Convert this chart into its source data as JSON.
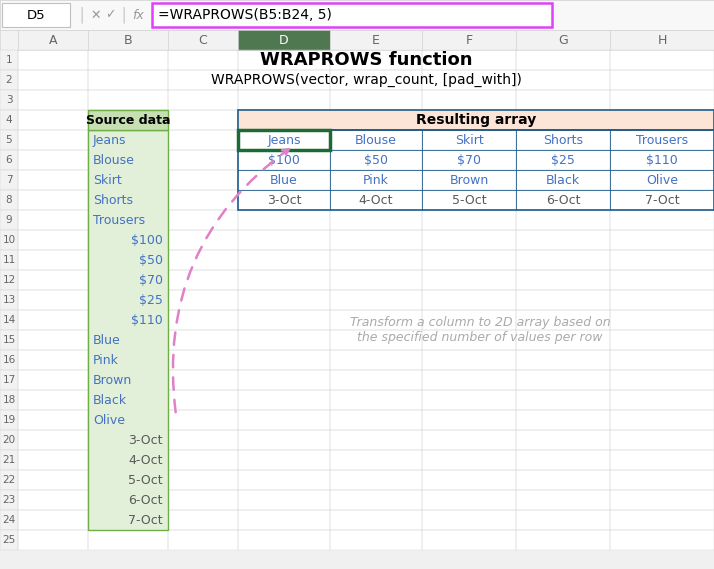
{
  "title": "WRAPROWS function",
  "subtitle": "WRAPROWS(vector, wrap_count, [pad_with])",
  "formula_bar_cell": "D5",
  "formula_bar_formula": "=WRAPROWS(B5:B24, 5)",
  "col_headers": [
    "A",
    "B",
    "C",
    "D",
    "E",
    "F",
    "G",
    "H"
  ],
  "source_data_header": "Source data",
  "source_data_col_items": [
    "Jeans",
    "Blouse",
    "Skirt",
    "Shorts",
    "Trousers"
  ],
  "source_data_col_prices": [
    "$100",
    "$50",
    "$70",
    "$25",
    "$110"
  ],
  "source_data_col_colors": [
    "Blue",
    "Pink",
    "Brown",
    "Black",
    "Olive"
  ],
  "source_data_col_dates": [
    "3-Oct",
    "4-Oct",
    "5-Oct",
    "6-Oct",
    "7-Oct"
  ],
  "result_header": "Resulting array",
  "result_data": [
    [
      "Jeans",
      "Blouse",
      "Skirt",
      "Shorts",
      "Trousers"
    ],
    [
      "$100",
      "$50",
      "$70",
      "$25",
      "$110"
    ],
    [
      "Blue",
      "Pink",
      "Brown",
      "Black",
      "Olive"
    ],
    [
      "3-Oct",
      "4-Oct",
      "5-Oct",
      "6-Oct",
      "7-Oct"
    ]
  ],
  "annotation_text": "Transform a column to 2D array based on\nthe specified number of values per row",
  "bg_color": "#ffffff",
  "result_header_bg": "#fce4d6",
  "result_table_border": "#1f5c8a",
  "source_header_bg": "#c6e0b4",
  "source_body_bg": "#e2f0d9",
  "source_border": "#70ad47",
  "formula_bar_border": "#e040fb",
  "annotation_color": "#aaaaaa",
  "arrow_color": "#e080c8",
  "col_header_selected_bg": "#507850",
  "col_header_selected_fg": "#ffffff",
  "col_header_bg": "#f2f2f2",
  "col_header_fg": "#666666",
  "row_header_bg": "#f2f2f2",
  "row_header_fg": "#666666",
  "grid_color": "#d0d0d0",
  "source_text_color": "#4472c4",
  "result_text_color": "#4472c4",
  "dates_color": "#595959",
  "title_color": "#000000",
  "selected_col": "D"
}
